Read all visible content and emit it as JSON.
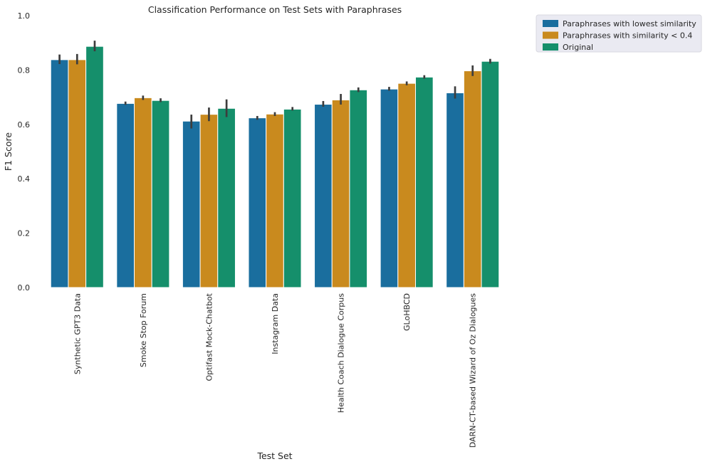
{
  "chart_data": {
    "type": "bar",
    "title": "Classification Performance on Test Sets with Paraphrases",
    "xlabel": "Test Set",
    "ylabel": "F1 Score",
    "ylim": [
      0,
      1.0
    ],
    "yticks": [
      "0.0",
      "0.2",
      "0.4",
      "0.6",
      "0.8",
      "1.0"
    ],
    "grid": false,
    "legend_position": "outside-top-right",
    "categories": [
      "Synthetic GPT3 Data",
      "Smoke Stop Forum",
      "Optifast Mock-Chatbot",
      "Instagram Data",
      "Health Coach Dialogue Corpus",
      "GLoHBCD",
      "DARN-CT-based Wizard of Oz Dialogues"
    ],
    "series": [
      {
        "name": "Paraphrases with lowest similarity",
        "color": "#1a6e9e",
        "values": [
          0.838,
          0.677,
          0.612,
          0.624,
          0.674,
          0.73,
          0.716
        ],
        "error_low": [
          0.822,
          0.672,
          0.585,
          0.617,
          0.665,
          0.724,
          0.695
        ],
        "error_high": [
          0.857,
          0.684,
          0.636,
          0.631,
          0.686,
          0.738,
          0.74
        ]
      },
      {
        "name": "Paraphrases with similarity < 0.4",
        "color": "#c98a1e",
        "values": [
          0.838,
          0.698,
          0.637,
          0.638,
          0.69,
          0.751,
          0.797
        ],
        "error_low": [
          0.821,
          0.69,
          0.612,
          0.631,
          0.673,
          0.744,
          0.778
        ],
        "error_high": [
          0.859,
          0.706,
          0.662,
          0.645,
          0.712,
          0.758,
          0.817
        ]
      },
      {
        "name": "Original",
        "color": "#158f6b",
        "values": [
          0.887,
          0.688,
          0.659,
          0.656,
          0.727,
          0.774,
          0.832
        ],
        "error_low": [
          0.869,
          0.682,
          0.627,
          0.651,
          0.719,
          0.768,
          0.824
        ],
        "error_high": [
          0.908,
          0.696,
          0.692,
          0.664,
          0.736,
          0.781,
          0.841
        ]
      }
    ]
  }
}
